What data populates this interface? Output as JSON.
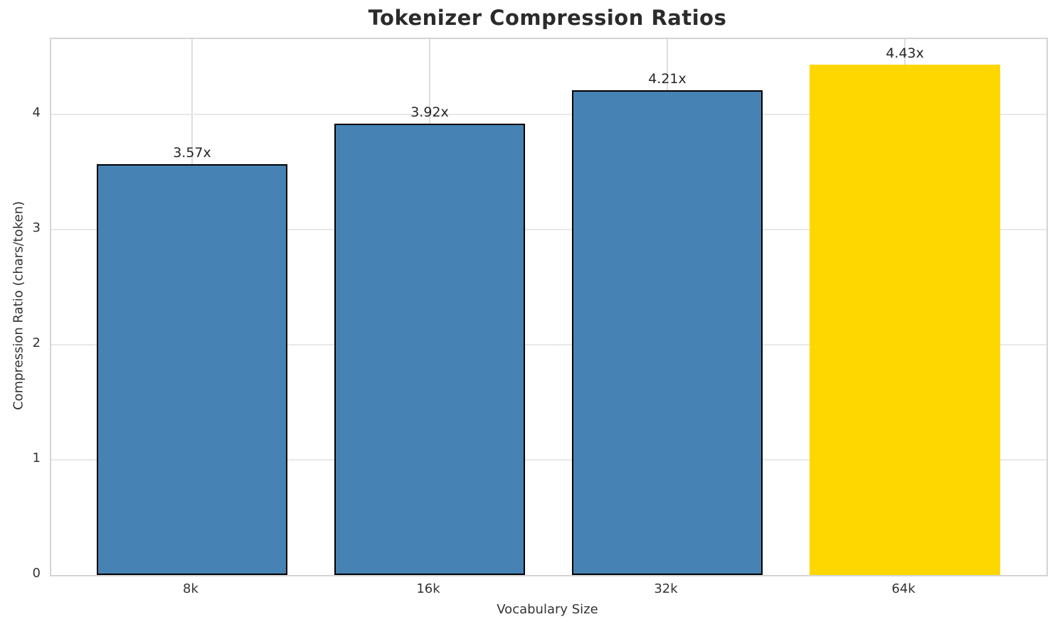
{
  "chart_data": {
    "type": "bar",
    "title": "Tokenizer Compression Ratios",
    "xlabel": "Vocabulary Size",
    "ylabel": "Compression Ratio (chars/token)",
    "categories": [
      "8k",
      "16k",
      "32k",
      "64k"
    ],
    "values": [
      3.57,
      3.92,
      4.21,
      4.43
    ],
    "bar_labels": [
      "3.57x",
      "3.92x",
      "4.21x",
      "4.43x"
    ],
    "bar_colors": [
      "#4682B4",
      "#4682B4",
      "#4682B4",
      "#FFD700"
    ],
    "bar_edge_colors": [
      "#000000",
      "#000000",
      "#000000",
      "#FFD700"
    ],
    "ylim": [
      0,
      4.65
    ],
    "yticks": [
      0,
      1,
      2,
      3,
      4
    ],
    "grid": true,
    "legend": null
  },
  "colors": {
    "background": "#ffffff",
    "grid_h": "#e8e8e8",
    "grid_v": "#dedede",
    "spine": "#d4d4d4",
    "text": "#333333",
    "title_text": "#2b2b2b",
    "bar_label_text": "#262626"
  }
}
